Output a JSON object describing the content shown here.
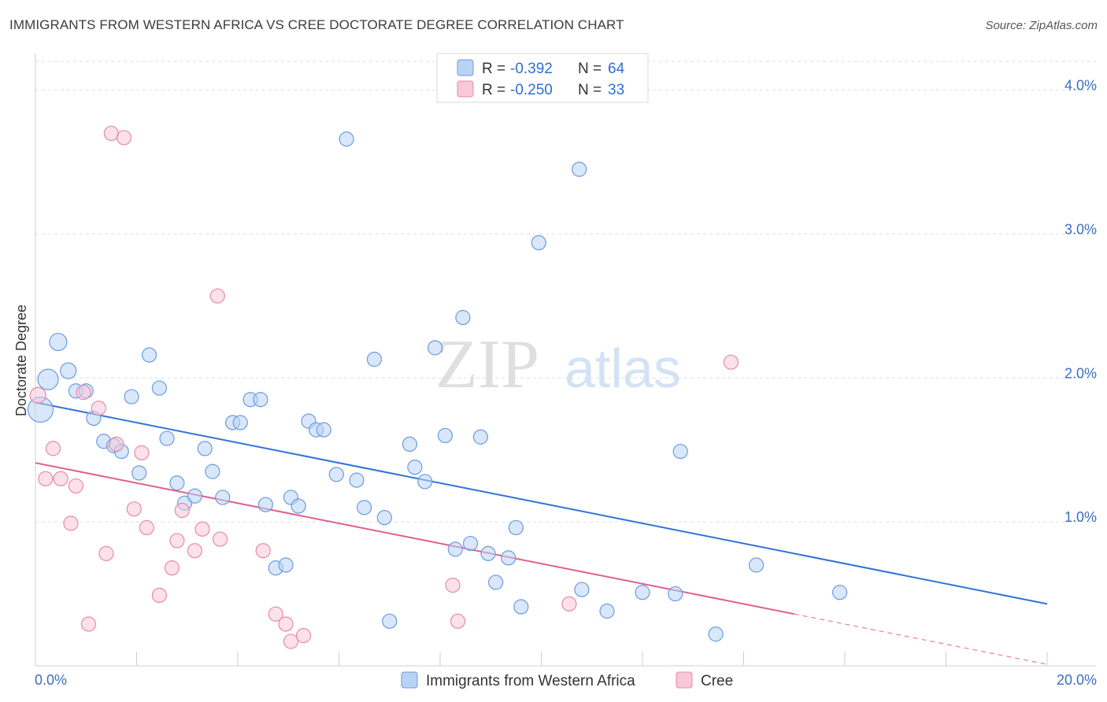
{
  "title": "IMMIGRANTS FROM WESTERN AFRICA VS CREE DOCTORATE DEGREE CORRELATION CHART",
  "source": "Source: ZipAtlas.com",
  "watermark": {
    "part1": "ZIP",
    "part2": "atlas"
  },
  "legend_top": [
    {
      "r_label": "R =",
      "r_value": "-0.392",
      "n_label": "N =",
      "n_value": "64",
      "fill": "#b9d3f5",
      "stroke": "#6b9be0"
    },
    {
      "r_label": "R =",
      "r_value": "-0.250",
      "n_label": "N =",
      "n_value": "33",
      "fill": "#f9c8d8",
      "stroke": "#e889a9"
    }
  ],
  "chart_data": {
    "type": "scatter",
    "title": "IMMIGRANTS FROM WESTERN AFRICA VS CREE DOCTORATE DEGREE CORRELATION CHART",
    "xlabel": "",
    "ylabel": "Doctorate Degree",
    "xlim": [
      0,
      20
    ],
    "ylim": [
      0,
      4.2
    ],
    "x_tick_labels": [
      "0.0%",
      "20.0%"
    ],
    "y_ticks": [
      1.0,
      2.0,
      3.0,
      4.0
    ],
    "y_tick_labels": [
      "1.0%",
      "2.0%",
      "3.0%",
      "4.0%"
    ],
    "grid": true,
    "series": [
      {
        "name": "Immigrants from Western Africa",
        "color": "#6b9be0",
        "fill": "#b9d3f5",
        "trend_color": "#2f73d6",
        "trend": {
          "x0": 0,
          "y0": 1.83,
          "x1": 20,
          "y1": 0.43
        },
        "points": [
          [
            0.1,
            1.78,
            16
          ],
          [
            0.25,
            1.99,
            13
          ],
          [
            0.45,
            2.25,
            11
          ],
          [
            0.65,
            2.05,
            10
          ],
          [
            0.8,
            1.91,
            9
          ],
          [
            1.0,
            1.91,
            9
          ],
          [
            1.15,
            1.72,
            9
          ],
          [
            1.35,
            1.56,
            9
          ],
          [
            1.55,
            1.53,
            9
          ],
          [
            1.7,
            1.49,
            9
          ],
          [
            1.9,
            1.87,
            9
          ],
          [
            2.05,
            1.34,
            9
          ],
          [
            2.25,
            2.16,
            9
          ],
          [
            2.45,
            1.93,
            9
          ],
          [
            2.6,
            1.58,
            9
          ],
          [
            2.8,
            1.27,
            9
          ],
          [
            2.95,
            1.13,
            9
          ],
          [
            3.15,
            1.18,
            9
          ],
          [
            3.35,
            1.51,
            9
          ],
          [
            3.5,
            1.35,
            9
          ],
          [
            3.7,
            1.17,
            9
          ],
          [
            3.9,
            1.69,
            9
          ],
          [
            4.05,
            1.69,
            9
          ],
          [
            4.25,
            1.85,
            9
          ],
          [
            4.45,
            1.85,
            9
          ],
          [
            4.55,
            1.12,
            9
          ],
          [
            4.75,
            0.68,
            9
          ],
          [
            4.95,
            0.7,
            9
          ],
          [
            5.05,
            1.17,
            9
          ],
          [
            5.2,
            1.11,
            9
          ],
          [
            5.4,
            1.7,
            9
          ],
          [
            5.55,
            1.64,
            9
          ],
          [
            5.7,
            1.64,
            9
          ],
          [
            5.95,
            1.33,
            9
          ],
          [
            6.15,
            3.66,
            9
          ],
          [
            6.35,
            1.29,
            9
          ],
          [
            6.5,
            1.1,
            9
          ],
          [
            6.7,
            2.13,
            9
          ],
          [
            6.9,
            1.03,
            9
          ],
          [
            7.0,
            0.31,
            9
          ],
          [
            7.4,
            1.54,
            9
          ],
          [
            7.5,
            1.38,
            9
          ],
          [
            7.7,
            1.28,
            9
          ],
          [
            7.9,
            2.21,
            9
          ],
          [
            8.1,
            1.6,
            9
          ],
          [
            8.3,
            0.81,
            9
          ],
          [
            8.45,
            2.42,
            9
          ],
          [
            8.6,
            0.85,
            9
          ],
          [
            8.8,
            1.59,
            9
          ],
          [
            8.95,
            0.78,
            9
          ],
          [
            9.1,
            0.58,
            9
          ],
          [
            9.35,
            0.75,
            9
          ],
          [
            9.5,
            0.96,
            9
          ],
          [
            9.6,
            0.41,
            9
          ],
          [
            9.95,
            2.94,
            9
          ],
          [
            10.75,
            3.45,
            9
          ],
          [
            10.8,
            0.53,
            9
          ],
          [
            11.3,
            0.38,
            9
          ],
          [
            12.0,
            0.51,
            9
          ],
          [
            12.65,
            0.5,
            9
          ],
          [
            12.75,
            1.49,
            9
          ],
          [
            13.45,
            0.22,
            9
          ],
          [
            14.25,
            0.7,
            9
          ],
          [
            15.9,
            0.51,
            9
          ]
        ]
      },
      {
        "name": "Cree",
        "color": "#e889a9",
        "fill": "#f9c8d8",
        "trend_color": "#e05e8c",
        "trend": {
          "x0": 0,
          "y0": 1.41,
          "x1": 15.0,
          "y1": 0.36
        },
        "trend_dashed": {
          "x0": 15.0,
          "y0": 0.36,
          "x1": 20,
          "y1": 0.01
        },
        "points": [
          [
            0.05,
            1.88,
            10
          ],
          [
            0.2,
            1.3,
            9
          ],
          [
            0.35,
            1.51,
            9
          ],
          [
            0.5,
            1.3,
            9
          ],
          [
            0.7,
            0.99,
            9
          ],
          [
            0.8,
            1.25,
            9
          ],
          [
            0.95,
            1.9,
            9
          ],
          [
            1.05,
            0.29,
            9
          ],
          [
            1.25,
            1.79,
            9
          ],
          [
            1.4,
            0.78,
            9
          ],
          [
            1.5,
            3.7,
            9
          ],
          [
            1.6,
            1.54,
            9
          ],
          [
            1.75,
            3.67,
            9
          ],
          [
            1.95,
            1.09,
            9
          ],
          [
            2.1,
            1.48,
            9
          ],
          [
            2.2,
            0.96,
            9
          ],
          [
            2.45,
            0.49,
            9
          ],
          [
            2.7,
            0.68,
            9
          ],
          [
            2.8,
            0.87,
            9
          ],
          [
            2.9,
            1.08,
            9
          ],
          [
            3.15,
            0.8,
            9
          ],
          [
            3.3,
            0.95,
            9
          ],
          [
            3.6,
            2.57,
            9
          ],
          [
            3.65,
            0.88,
            9
          ],
          [
            4.5,
            0.8,
            9
          ],
          [
            4.75,
            0.36,
            9
          ],
          [
            4.95,
            0.29,
            9
          ],
          [
            5.05,
            0.17,
            9
          ],
          [
            5.3,
            0.21,
            9
          ],
          [
            8.25,
            0.56,
            9
          ],
          [
            8.35,
            0.31,
            9
          ],
          [
            10.55,
            0.43,
            9
          ],
          [
            13.75,
            2.11,
            9
          ]
        ]
      }
    ]
  },
  "bottom_legend": [
    {
      "label": "Immigrants from Western Africa",
      "fill": "#b9d3f5",
      "stroke": "#6b9be0"
    },
    {
      "label": "Cree",
      "fill": "#f9c8d8",
      "stroke": "#e889a9"
    }
  ]
}
